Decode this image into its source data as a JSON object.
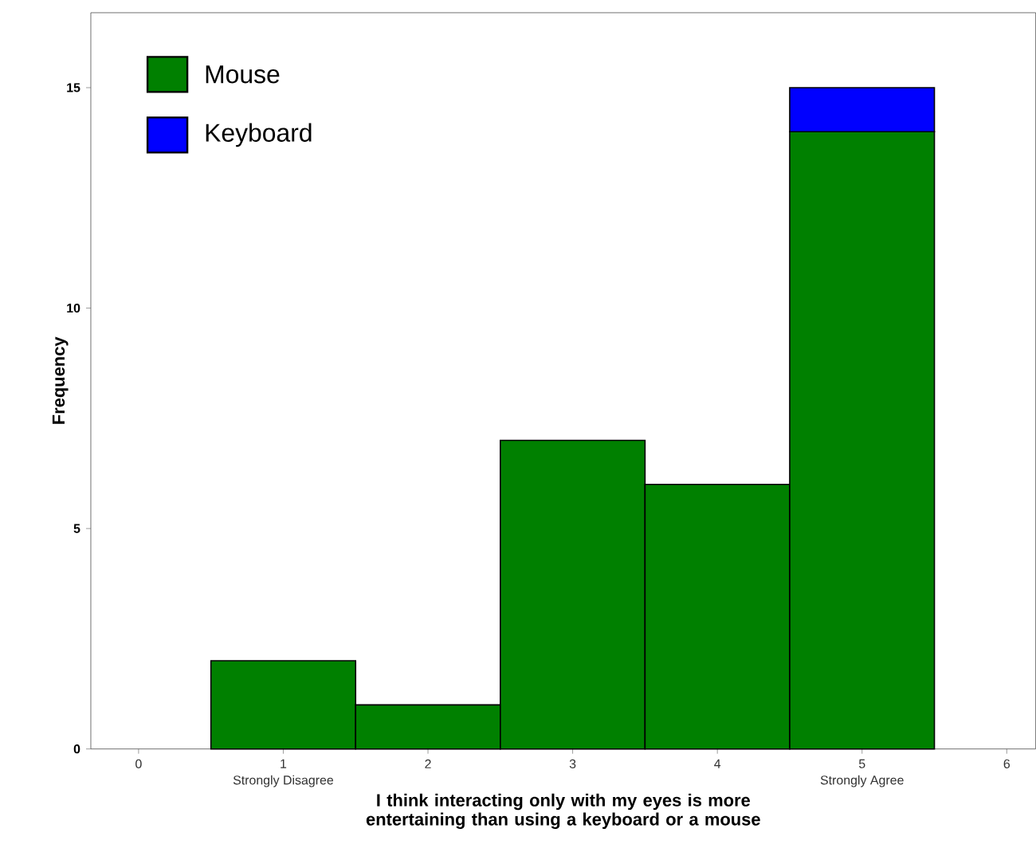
{
  "chart_data": {
    "type": "bar",
    "stacked": true,
    "xlabel": "I think interacting only with my eyes is more entertaining than using a keyboard or a mouse",
    "ylabel": "Frequency",
    "x": [
      1,
      2,
      3,
      4,
      5
    ],
    "series": [
      {
        "name": "Mouse",
        "color": "#008000",
        "values": [
          2,
          1,
          7,
          6,
          14
        ]
      },
      {
        "name": "Keyboard",
        "color": "#0000ff",
        "values": [
          0,
          0,
          0,
          0,
          1
        ]
      }
    ],
    "xlim": [
      -0.33,
      6.2
    ],
    "ylim": [
      0,
      16.7
    ],
    "xticks": [
      0,
      1,
      2,
      3,
      4,
      5,
      6
    ],
    "yticks": [
      0,
      5,
      10,
      15
    ],
    "annotations": [
      {
        "text": "Strongly Disagree",
        "x": 1,
        "y": 0
      },
      {
        "text": "Strongly Agree",
        "x": 5,
        "y": 0
      }
    ],
    "legend": "top left",
    "grid": false
  }
}
